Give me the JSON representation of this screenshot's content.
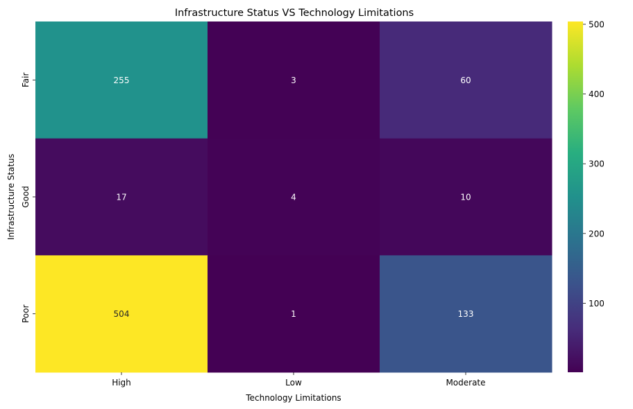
{
  "chart_data": {
    "type": "heatmap",
    "title": "Infrastructure Status VS Technology Limitations",
    "xlabel": "Technology Limitations",
    "ylabel": "Infrastructure Status",
    "x_categories": [
      "High",
      "Low",
      "Moderate"
    ],
    "y_categories": [
      "Fair",
      "Good",
      "Poor"
    ],
    "values": [
      [
        255,
        3,
        60
      ],
      [
        17,
        4,
        10
      ],
      [
        504,
        1,
        133
      ]
    ],
    "colorbar": {
      "min": 1,
      "max": 504,
      "ticks": [
        "100",
        "200",
        "300",
        "400",
        "500"
      ],
      "tick_values": [
        100,
        200,
        300,
        400,
        500
      ],
      "colormap": "viridis"
    },
    "grid": false
  }
}
